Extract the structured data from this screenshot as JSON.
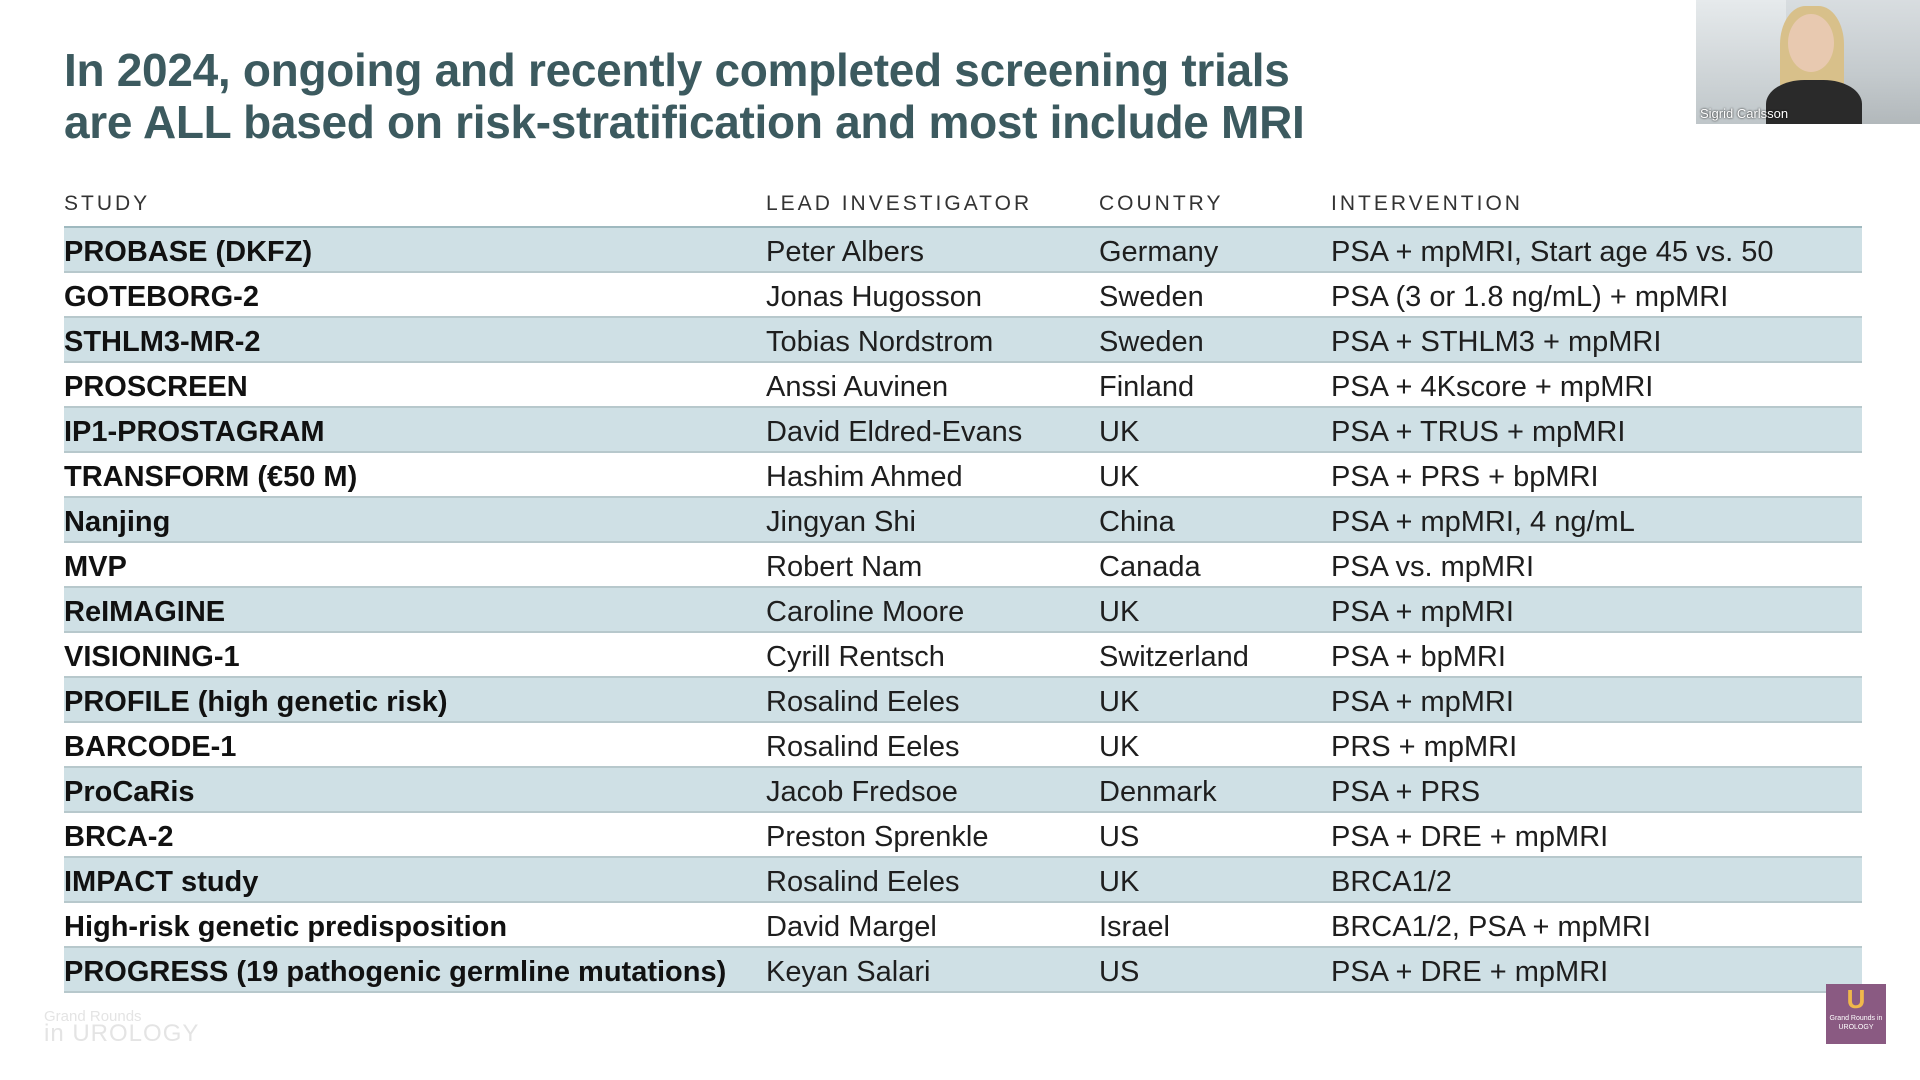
{
  "slide": {
    "title_line1": "In 2024, ongoing and recently completed screening trials",
    "title_line2": "are ALL based on risk-stratification and most include MRI"
  },
  "table": {
    "headers": {
      "study": "STUDY",
      "investigator": "LEAD INVESTIGATOR",
      "country": "COUNTRY",
      "intervention": "INTERVENTION"
    },
    "rows": [
      {
        "study": "PROBASE (DKFZ)",
        "investigator": "Peter Albers",
        "country": "Germany",
        "intervention": "PSA + mpMRI, Start age 45 vs. 50"
      },
      {
        "study": "GOTEBORG-2",
        "investigator": "Jonas Hugosson",
        "country": "Sweden",
        "intervention": "PSA (3 or 1.8 ng/mL) + mpMRI"
      },
      {
        "study": "STHLM3-MR-2",
        "investigator": "Tobias Nordstrom",
        "country": "Sweden",
        "intervention": "PSA + STHLM3 + mpMRI"
      },
      {
        "study": "PROSCREEN",
        "investigator": "Anssi Auvinen",
        "country": "Finland",
        "intervention": "PSA + 4Kscore + mpMRI"
      },
      {
        "study": "IP1-PROSTAGRAM",
        "investigator": "David Eldred-Evans",
        "country": "UK",
        "intervention": "PSA + TRUS + mpMRI"
      },
      {
        "study": "TRANSFORM (€50 M)",
        "investigator": "Hashim Ahmed",
        "country": "UK",
        "intervention": "PSA + PRS + bpMRI"
      },
      {
        "study": "Nanjing",
        "investigator": "Jingyan Shi",
        "country": "China",
        "intervention": "PSA + mpMRI, 4 ng/mL"
      },
      {
        "study": "MVP",
        "investigator": "Robert Nam",
        "country": "Canada",
        "intervention": "PSA vs. mpMRI"
      },
      {
        "study": "ReIMAGINE",
        "investigator": "Caroline Moore",
        "country": "UK",
        "intervention": "PSA + mpMRI"
      },
      {
        "study": "VISIONING-1",
        "investigator": "Cyrill Rentsch",
        "country": "Switzerland",
        "intervention": "PSA + bpMRI"
      },
      {
        "study": "PROFILE (high genetic risk)",
        "investigator": "Rosalind Eeles",
        "country": "UK",
        "intervention": "PSA + mpMRI"
      },
      {
        "study": "BARCODE-1",
        "investigator": "Rosalind Eeles",
        "country": "UK",
        "intervention": "PRS + mpMRI"
      },
      {
        "study": "ProCaRis",
        "investigator": "Jacob Fredsoe",
        "country": "Denmark",
        "intervention": "PSA + PRS"
      },
      {
        "study": "BRCA-2",
        "investigator": "Preston Sprenkle",
        "country": "US",
        "intervention": "PSA + DRE + mpMRI"
      },
      {
        "study": "IMPACT study",
        "investigator": "Rosalind Eeles",
        "country": "UK",
        "intervention": "BRCA1/2"
      },
      {
        "study": "High-risk genetic predisposition",
        "investigator": "David Margel",
        "country": "Israel",
        "intervention": "BRCA1/2, PSA + mpMRI"
      },
      {
        "study": "PROGRESS (19 pathogenic germline mutations)",
        "investigator": "Keyan Salari",
        "country": "US",
        "intervention": "PSA + DRE + mpMRI"
      }
    ]
  },
  "presenter": {
    "name": "Sigrid Carlsson"
  },
  "branding": {
    "logo_mark": "U",
    "logo_text": "Grand Rounds in UROLOGY",
    "watermark_line1": "Grand Rounds",
    "watermark_line2": "in UROLOGY"
  },
  "colors": {
    "title": "#3c5a5f",
    "row_shade": "#cfe0e5",
    "row_border": "#b7c8cc",
    "logo_bg": "#8a5a82"
  }
}
